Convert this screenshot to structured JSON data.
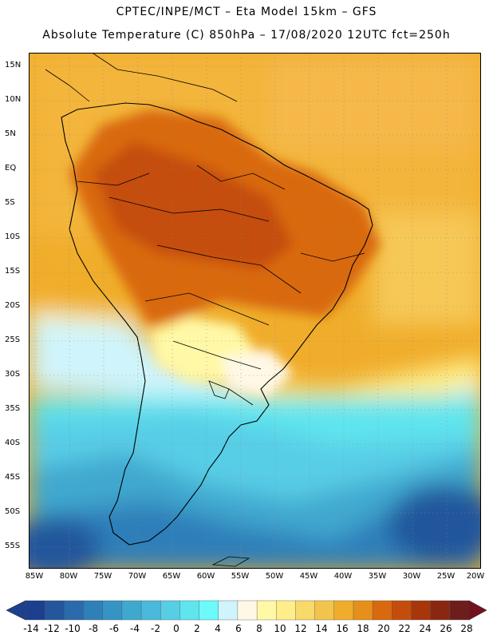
{
  "header": {
    "line1": "CPTEC/INPE/MCT  –   Eta Model 15km  –  GFS",
    "line2": "Absolute Temperature (C) 850hPa – 17/08/2020 12UTC fct=250h"
  },
  "map": {
    "lat_labels": [
      "15N",
      "10N",
      "5N",
      "EQ",
      "5S",
      "10S",
      "15S",
      "20S",
      "25S",
      "30S",
      "35S",
      "40S",
      "45S",
      "50S",
      "55S"
    ],
    "lon_labels": [
      "85W",
      "80W",
      "75W",
      "70W",
      "65W",
      "60W",
      "55W",
      "50W",
      "45W",
      "40W",
      "35W",
      "30W",
      "25W",
      "20W"
    ]
  },
  "colorbar": {
    "labels": [
      "-14",
      "-12",
      "-10",
      "-8",
      "-6",
      "-4",
      "-2",
      "0",
      "2",
      "4",
      "6",
      "8",
      "10",
      "12",
      "14",
      "16",
      "18",
      "20",
      "22",
      "24",
      "26",
      "28"
    ],
    "colors": [
      "#1c3f8e",
      "#23569c",
      "#2b6aab",
      "#2f7fb9",
      "#3594c4",
      "#3fa8cf",
      "#4ab9da",
      "#58cde6",
      "#5ee5ee",
      "#6cfafa",
      "#cff4fb",
      "#fff8e6",
      "#fff8a6",
      "#ffee8a",
      "#f8d96a",
      "#f3c44c",
      "#f0ad2b",
      "#e68f1a",
      "#d9690e",
      "#c54d0b",
      "#a8360b",
      "#8a2710",
      "#6e1e1a"
    ],
    "under_color": "#1c3f8e",
    "over_color": "#75101e"
  }
}
